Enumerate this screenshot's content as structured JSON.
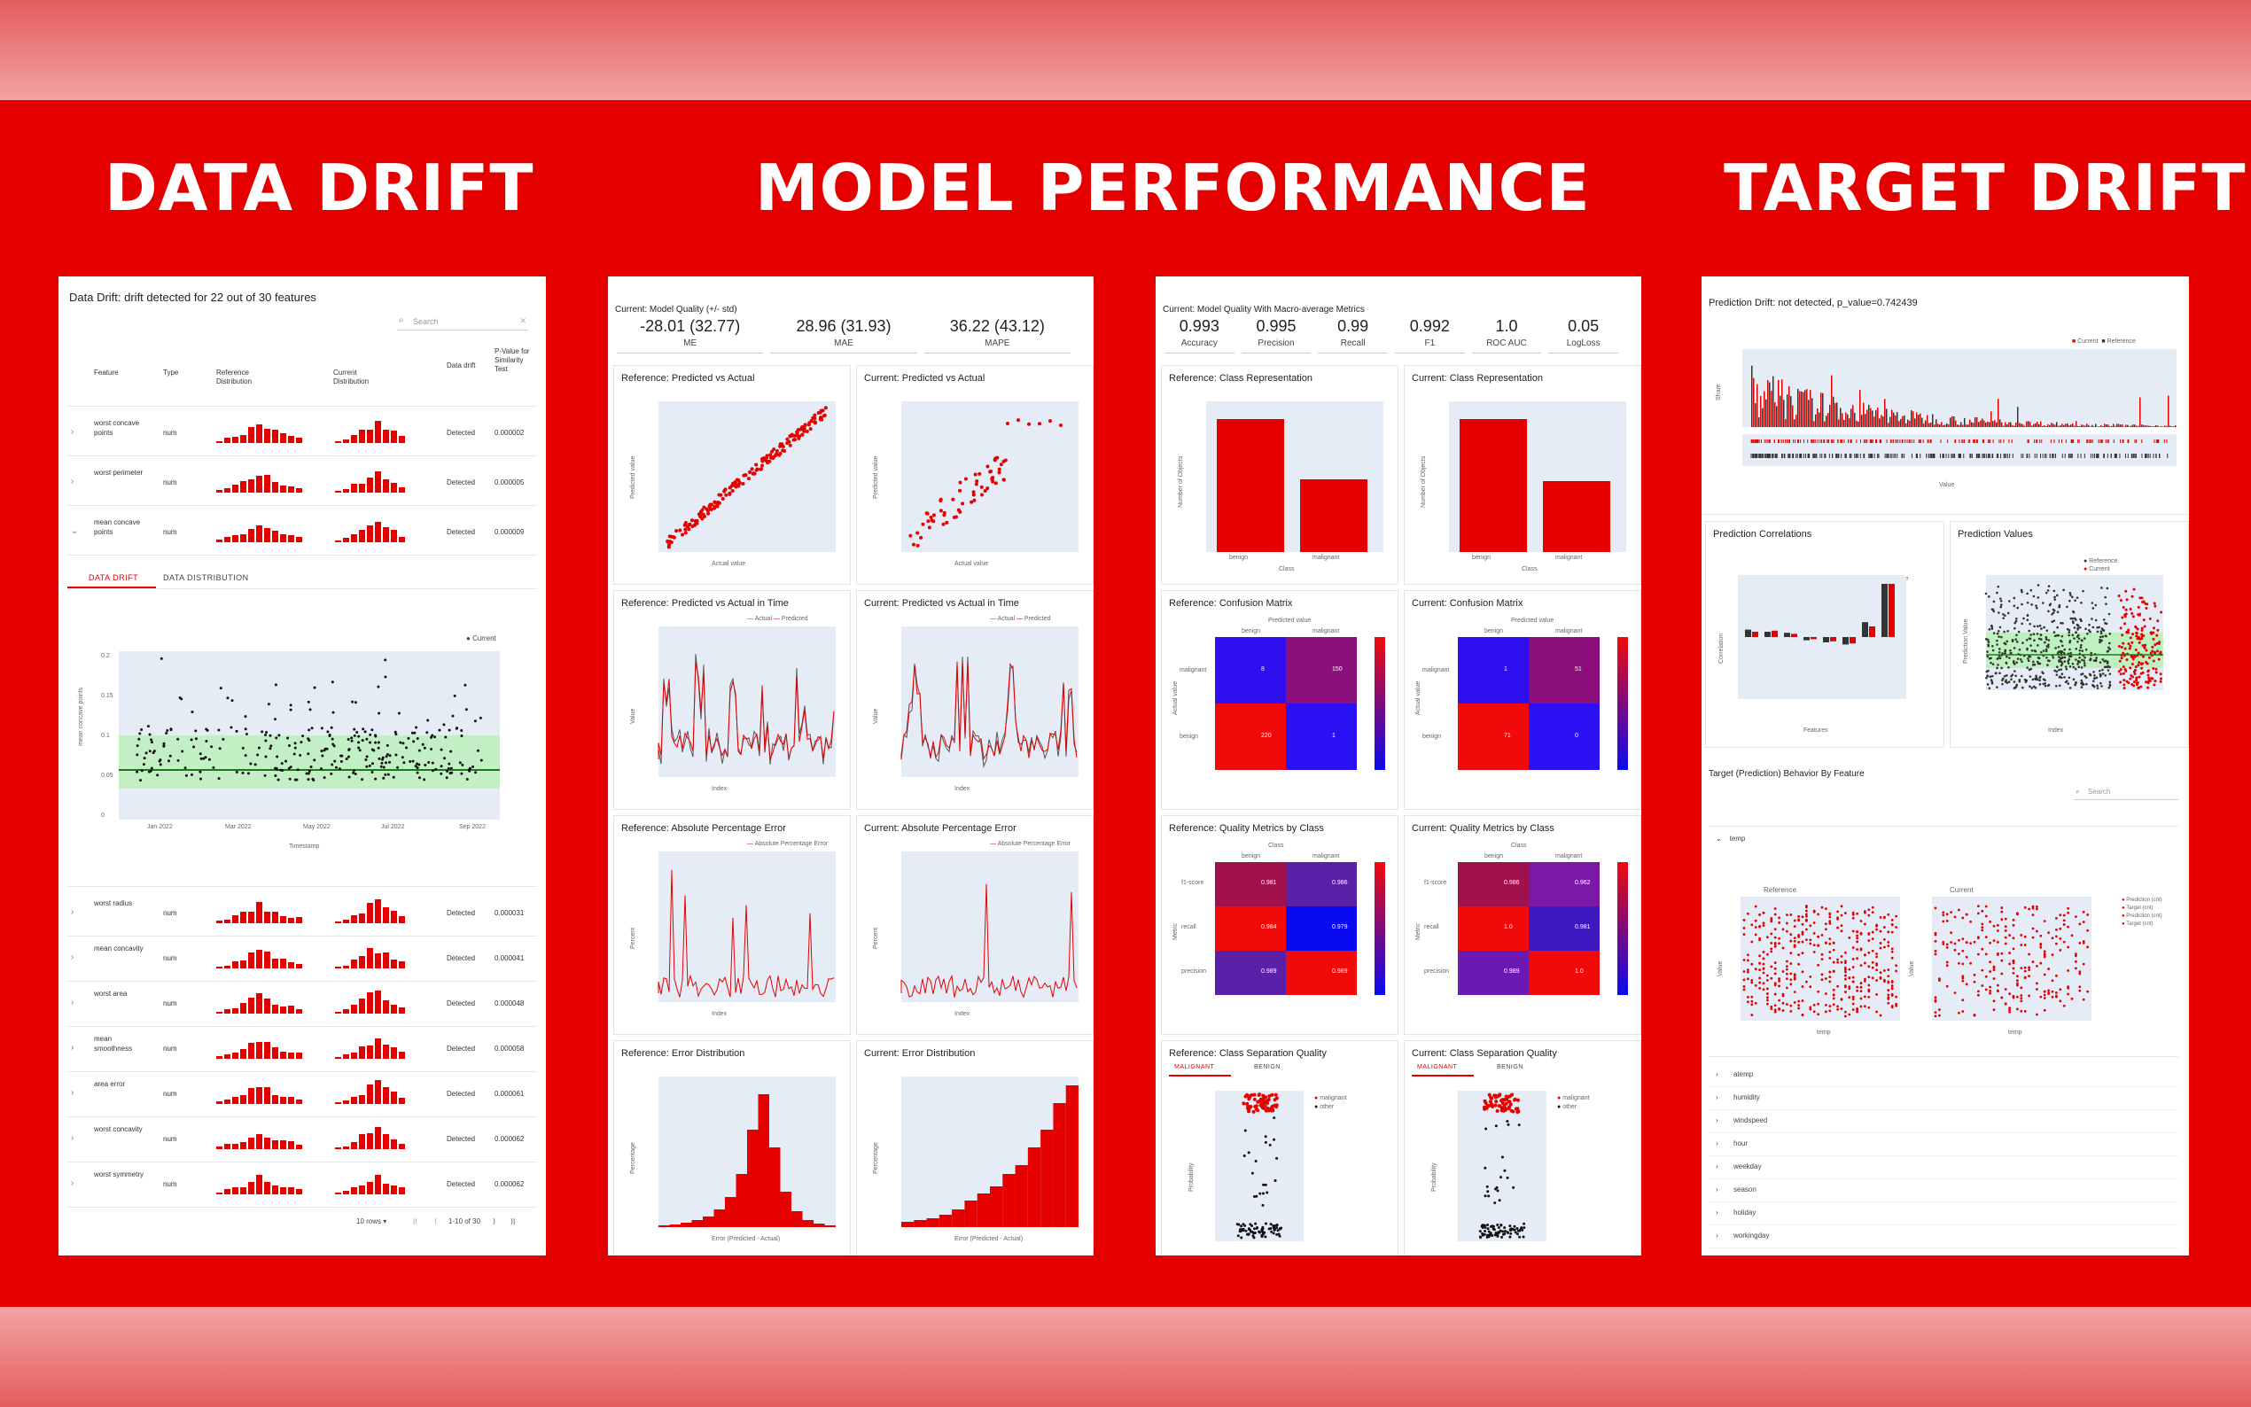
{
  "titles": {
    "data_drift": "DATA DRIFT",
    "model_performance": "MODEL PERFORMANCE",
    "target_drift": "TARGET DRIFT"
  },
  "data_drift": {
    "header": "Data Drift: drift detected for 22 out of 30 features",
    "search_placeholder": "Search",
    "columns": [
      "Feature",
      "Type",
      "Reference Distribution",
      "Current Distribution",
      "Data drift",
      "P-Value for Similarity Test"
    ],
    "rows_top": [
      {
        "feature": "worst concave points",
        "type": "num",
        "drift": "Detected",
        "p": "0.000002"
      },
      {
        "feature": "worst perimeter",
        "type": "num",
        "drift": "Detected",
        "p": "0.000005"
      },
      {
        "feature": "mean concave points",
        "type": "num",
        "drift": "Detected",
        "p": "0.000009"
      }
    ],
    "tabs": [
      "DATA DRIFT",
      "DATA DISTRIBUTION"
    ],
    "chart": {
      "legend": "Current",
      "ylabel": "mean concave points",
      "xlabel": "Timestamp",
      "xticks": [
        "Jan 2022",
        "Mar 2022",
        "May 2022",
        "Jul 2022",
        "Sep 2022"
      ],
      "yticks": [
        "0.2",
        "0.15",
        "0.1",
        "0.05",
        "0"
      ]
    },
    "rows_bottom": [
      {
        "feature": "worst radius",
        "type": "num",
        "drift": "Detected",
        "p": "0.000031"
      },
      {
        "feature": "mean concavity",
        "type": "num",
        "drift": "Detected",
        "p": "0.000041"
      },
      {
        "feature": "worst area",
        "type": "num",
        "drift": "Detected",
        "p": "0.000048"
      },
      {
        "feature": "mean smoothness",
        "type": "num",
        "drift": "Detected",
        "p": "0.000058"
      },
      {
        "feature": "area error",
        "type": "num",
        "drift": "Detected",
        "p": "0.000061"
      },
      {
        "feature": "worst concavity",
        "type": "num",
        "drift": "Detected",
        "p": "0.000062"
      },
      {
        "feature": "worst symmetry",
        "type": "num",
        "drift": "Detected",
        "p": "0.000062"
      }
    ],
    "pagination": {
      "rows": "10 rows",
      "range": "1-10 of 30"
    }
  },
  "regression": {
    "quality_title": "Current: Model Quality (+/- std)",
    "metrics": [
      {
        "value": "-28.01 (32.77)",
        "label": "ME"
      },
      {
        "value": "28.96 (31.93)",
        "label": "MAE"
      },
      {
        "value": "36.22 (43.12)",
        "label": "MAPE"
      }
    ],
    "cards": [
      {
        "title": "Reference: Predicted vs Actual",
        "xlabel": "Actual value",
        "ylabel": "Predicted value"
      },
      {
        "title": "Current: Predicted vs Actual",
        "xlabel": "Actual value",
        "ylabel": "Predicted value"
      },
      {
        "title": "Reference: Predicted vs Actual in Time",
        "xlabel": "Index",
        "ylabel": "Value",
        "legend": [
          "Actual",
          "Predicted"
        ]
      },
      {
        "title": "Current: Predicted vs Actual in Time",
        "xlabel": "Index",
        "ylabel": "Value",
        "legend": [
          "Actual",
          "Predicted"
        ]
      },
      {
        "title": "Reference: Absolute Percentage Error",
        "xlabel": "Index",
        "ylabel": "Percent",
        "legend": [
          "Absolute Percentage Error"
        ]
      },
      {
        "title": "Current: Absolute Percentage Error",
        "xlabel": "Index",
        "ylabel": "Percent",
        "legend": [
          "Absolute Percentage Error"
        ]
      },
      {
        "title": "Reference: Error Distribution",
        "xlabel": "Error (Predicted - Actual)",
        "ylabel": "Percentage"
      },
      {
        "title": "Current: Error Distribution",
        "xlabel": "Error (Predicted - Actual)",
        "ylabel": "Percentage"
      }
    ]
  },
  "classification": {
    "quality_title": "Current: Model Quality With Macro-average Metrics",
    "metrics": [
      {
        "value": "0.993",
        "label": "Accuracy"
      },
      {
        "value": "0.995",
        "label": "Precision"
      },
      {
        "value": "0.99",
        "label": "Recall"
      },
      {
        "value": "0.992",
        "label": "F1"
      },
      {
        "value": "1.0",
        "label": "ROC AUC"
      },
      {
        "value": "0.05",
        "label": "LogLoss"
      }
    ],
    "cards": [
      {
        "title": "Reference: Class Representation",
        "xlabel": "Class",
        "ylabel": "Number of Objects"
      },
      {
        "title": "Current: Class Representation",
        "xlabel": "Class",
        "ylabel": "Number of Objects"
      },
      {
        "title": "Reference: Confusion Matrix",
        "top": "Predicted value",
        "ylabel": "Actual value",
        "cells": [
          "8",
          "150",
          "220",
          "1"
        ]
      },
      {
        "title": "Current: Confusion Matrix",
        "top": "Predicted value",
        "ylabel": "Actual value",
        "cells": [
          "1",
          "51",
          "71",
          "0"
        ]
      },
      {
        "title": "Reference: Quality Metrics by Class",
        "top": "Class",
        "ylabel": "Metric",
        "cells": [
          "0.981",
          "0.986",
          "0.984",
          "0.979",
          "0.989",
          "0.989"
        ]
      },
      {
        "title": "Current: Quality Metrics by Class",
        "top": "Class",
        "ylabel": "Metric",
        "cells": [
          "0.986",
          "0.962",
          "1.0",
          "0.981",
          "0.989",
          "1.0"
        ]
      },
      {
        "title": "Reference: Class Separation Quality",
        "ylabel": "Probability",
        "tabs": [
          "MALIGNANT",
          "BENIGN"
        ],
        "legend": [
          "malignant",
          "other"
        ]
      },
      {
        "title": "Current: Class Separation Quality",
        "ylabel": "Probability",
        "tabs": [
          "MALIGNANT",
          "BENIGN"
        ],
        "legend": [
          "malignant",
          "other"
        ]
      }
    ],
    "class_names": [
      "benign",
      "malignant"
    ],
    "metric_names": [
      "f1-score",
      "recall",
      "precision"
    ]
  },
  "target_drift": {
    "header": "Prediction Drift: not detected, p_value=0.742439",
    "legend": [
      "Current",
      "Reference"
    ],
    "ylabel": "Share",
    "xlabel": "Value",
    "cards": [
      {
        "title": "Prediction Correlations",
        "xlabel": "Features",
        "ylabel": "Correlation",
        "legend": [
          "Reference",
          "Current"
        ]
      },
      {
        "title": "Prediction Values",
        "xlabel": "Index",
        "ylabel": "Prediction Value",
        "legend": [
          "Reference",
          "Current"
        ]
      }
    ],
    "behavior_title": "Target (Prediction) Behavior By Feature",
    "search_placeholder": "Search",
    "expanded_feature": "temp",
    "sub_titles": [
      "Reference",
      "Current"
    ],
    "sub_legend": [
      "Prediction (cnt)",
      "Target (cnt)",
      "Prediction (cnt)",
      "Target (cnt)"
    ],
    "sub_xlabel": "temp",
    "sub_ylabel": "Value",
    "features": [
      "atemp",
      "humidity",
      "windspeed",
      "hour",
      "weekday",
      "season",
      "holiday",
      "workingday"
    ]
  }
}
